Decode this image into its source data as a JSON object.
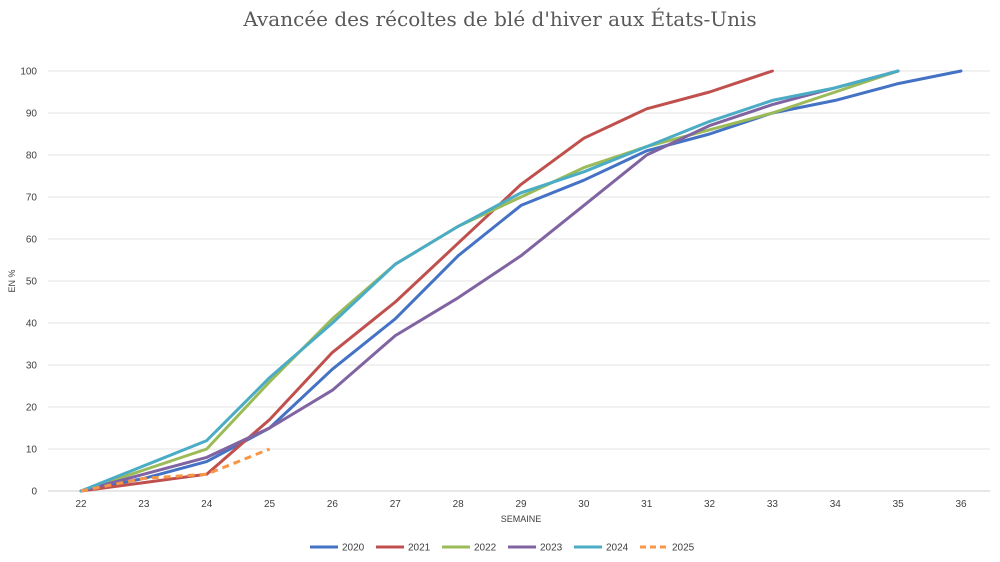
{
  "chart_data": {
    "type": "line",
    "title": "Avancée des récoltes de blé d'hiver aux États-Unis",
    "xlabel": "SEMAINE",
    "ylabel": "EN %",
    "x": [
      22,
      23,
      24,
      25,
      26,
      27,
      28,
      29,
      30,
      31,
      32,
      33,
      34,
      35,
      36
    ],
    "xlim": [
      22,
      36
    ],
    "ylim": [
      0,
      100
    ],
    "yticks": [
      0,
      10,
      20,
      30,
      40,
      50,
      60,
      70,
      80,
      90,
      100
    ],
    "grid": true,
    "legend_position": "bottom",
    "series": [
      {
        "name": "2020",
        "color": "#4472C4",
        "dashed": false,
        "x": [
          22,
          23,
          24,
          25,
          26,
          27,
          28,
          29,
          30,
          31,
          32,
          33,
          34,
          35,
          36
        ],
        "values": [
          0,
          3,
          7,
          15,
          29,
          41,
          56,
          68,
          74,
          81,
          85,
          90,
          93,
          97,
          100
        ]
      },
      {
        "name": "2021",
        "color": "#C0504D",
        "dashed": false,
        "x": [
          22,
          23,
          24,
          25,
          26,
          27,
          28,
          29,
          30,
          31,
          32,
          33
        ],
        "values": [
          0,
          2,
          4,
          17,
          33,
          45,
          59,
          73,
          84,
          91,
          95,
          100
        ]
      },
      {
        "name": "2022",
        "color": "#9BBB59",
        "dashed": false,
        "x": [
          22,
          23,
          24,
          25,
          26,
          27,
          28,
          29,
          30,
          31,
          32,
          33,
          34,
          35
        ],
        "values": [
          0,
          5,
          10,
          26,
          41,
          54,
          63,
          70,
          77,
          82,
          86,
          90,
          95,
          100
        ]
      },
      {
        "name": "2023",
        "color": "#8064A2",
        "dashed": false,
        "x": [
          22,
          23,
          24,
          25,
          26,
          27,
          28,
          29,
          30,
          31,
          32,
          33,
          34,
          35
        ],
        "values": [
          0,
          4,
          8,
          15,
          24,
          37,
          46,
          56,
          68,
          80,
          87,
          92,
          96,
          100
        ]
      },
      {
        "name": "2024",
        "color": "#4BACC6",
        "dashed": false,
        "x": [
          22,
          23,
          24,
          25,
          26,
          27,
          28,
          29,
          30,
          31,
          32,
          33,
          34,
          35
        ],
        "values": [
          0,
          6,
          12,
          27,
          40,
          54,
          63,
          71,
          76,
          82,
          88,
          93,
          96,
          100
        ]
      },
      {
        "name": "2025",
        "color": "#F79646",
        "dashed": true,
        "x": [
          22,
          23,
          24,
          25
        ],
        "values": [
          0,
          3,
          4,
          10
        ]
      }
    ]
  }
}
